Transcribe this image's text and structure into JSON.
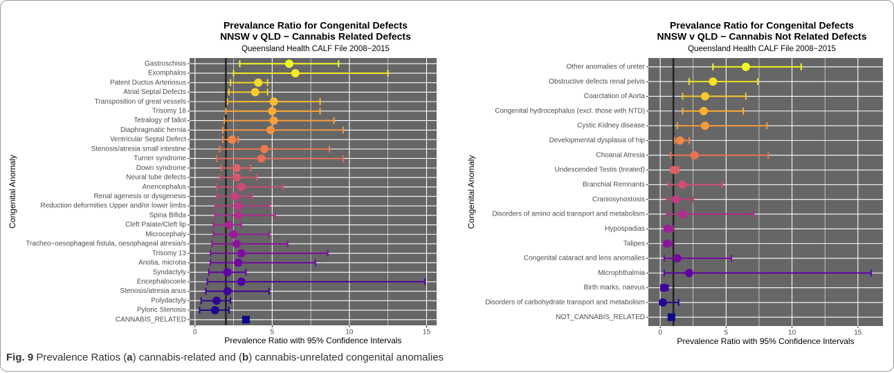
{
  "chart_data": [
    {
      "type": "forest",
      "title": [
        "Prevalance Ratio for Congenital Defects",
        "NNSW v QLD − Cannabis Related Defects"
      ],
      "subtitle": "Queensland Health CALF File 2008−2015",
      "xlabel": "Prevalence Ratio with 95% Confidence Intervals",
      "ylabel": "Congenital Anomaly",
      "categories": [
        "Gastroschisis",
        "Exomphalos",
        "Patent Ductus Arteriosus",
        "Atrial Septal Defects",
        "Transposition of great vessels",
        "Trisomy 18",
        "Tetralogy of fallot",
        "Diaphragmatic hernia",
        "Ventricular Septal Defect",
        "Stenosis/atresia small intestine",
        "Turner syndrome",
        "Down syndrome",
        "Neural tube defects",
        "Anencephalus",
        "Renal agenesis or dysgenesis",
        "Reduction deformities Upper and/or lower limbs",
        "Spina Bifida",
        "Cleft Palate/Cleft lip",
        "Microcephaly",
        "Tracheo−oesophageal fistula, oesophageal atresia/s",
        "Trisomy 13",
        "Anotia, microtia",
        "Syndactyly",
        "Encephalocoele",
        "Stenosis/atresia anus",
        "Polydactyly",
        "Pyloric Stenosis",
        "CANNABIS_RELATED"
      ],
      "values": [
        6.1,
        6.5,
        4.1,
        3.9,
        5.1,
        5.0,
        5.1,
        4.9,
        2.4,
        4.5,
        4.3,
        2.7,
        2.7,
        3.0,
        2.6,
        2.8,
        2.8,
        2.2,
        2.5,
        2.7,
        3.0,
        2.8,
        2.1,
        3.0,
        2.1,
        1.4,
        1.3,
        3.3
      ],
      "lower": [
        2.9,
        2.5,
        2.3,
        2.2,
        2.1,
        2.0,
        1.9,
        1.8,
        1.8,
        1.6,
        1.4,
        1.7,
        1.6,
        1.4,
        1.4,
        1.3,
        1.3,
        1.2,
        1.2,
        1.1,
        1.0,
        1.0,
        0.9,
        0.8,
        0.7,
        0.4,
        0.3,
        3.1
      ],
      "upper": [
        9.3,
        12.5,
        4.7,
        4.7,
        8.1,
        8.1,
        9.0,
        9.6,
        2.8,
        8.7,
        9.6,
        3.6,
        4.0,
        5.7,
        3.7,
        4.8,
        5.2,
        3.0,
        4.8,
        6.0,
        8.6,
        7.8,
        3.3,
        14.9,
        4.8,
        2.3,
        2.2,
        3.5
      ],
      "colors": [
        "#f0f921",
        "#fca636",
        "#e16462",
        "#b12a90",
        "#6a00a8",
        "#0d0887"
      ],
      "summary_shape": "square",
      "ref_line": 2,
      "xlim": [
        -0.35,
        15.65
      ],
      "xticks": [
        0,
        5,
        10,
        15
      ],
      "grid": true,
      "background": "#666666"
    },
    {
      "type": "forest",
      "title": [
        "Prevalance Ratio for Congenital Defects",
        "NNSW v QLD − Cannabis Not Related Defects"
      ],
      "subtitle": "Queensland Health CALF File 2008−2015",
      "xlabel": "Prevalence Ratio with 95% Confidence Intervals",
      "ylabel": "Congenital Anomaly",
      "categories": [
        "Other anomalies of ureter",
        "Obstructive defects renal pelvis",
        "Coarctation of Aorta",
        "Congenital hydrocephalus (excl. those with NTD)",
        "Cystic Kidney disease",
        "Developmental dysplasia of hip",
        "Choanal Atresia",
        "Undescended Testis (treated)",
        "Branchial Remnants",
        "Craniosynostosis",
        "Disorders of amino acid transport and metabolism",
        "Hypospadias",
        "Talipes",
        "Congenital cataract and lens anomalies",
        "Microphthalmia",
        "Birth marks, naevus",
        "Disorders of carbohydrate transport and metabolism",
        "NOT_CANNABIS_RELATED"
      ],
      "values": [
        6.5,
        4.0,
        3.4,
        3.3,
        3.4,
        1.5,
        2.6,
        1.1,
        1.7,
        1.2,
        1.7,
        0.6,
        0.5,
        1.3,
        2.2,
        0.3,
        0.2,
        0.85
      ],
      "lower": [
        4.0,
        2.2,
        1.7,
        1.7,
        1.3,
        1.1,
        0.8,
        0.8,
        0.6,
        0.5,
        0.5,
        0.3,
        0.3,
        0.3,
        0.3,
        0.05,
        0.05,
        0.7
      ],
      "upper": [
        10.7,
        7.4,
        6.5,
        6.3,
        8.1,
        2.2,
        8.2,
        1.4,
        4.7,
        2.5,
        7.1,
        1.0,
        0.9,
        5.4,
        16.0,
        0.6,
        1.4,
        1.0
      ],
      "colors": [
        "#f0f921",
        "#fca636",
        "#e16462",
        "#b12a90",
        "#6a00a8",
        "#0d0887"
      ],
      "summary_shape": "square",
      "ref_line": 1,
      "xlim": [
        -0.9,
        16.9
      ],
      "xticks": [
        0,
        5,
        10,
        15
      ],
      "grid": true,
      "background": "#666666"
    }
  ],
  "caption": {
    "label": "Fig. 9",
    "parts": [
      " Prevalence Ratios (",
      "a",
      ") cannabis-related and (",
      "b",
      ") cannabis-unrelated congenital anomalies"
    ]
  }
}
